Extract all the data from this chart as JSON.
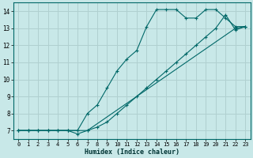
{
  "xlabel": "Humidex (Indice chaleur)",
  "bg_color": "#c8e8e8",
  "grid_color": "#b0d0d0",
  "line_color": "#006868",
  "xlim": [
    -0.5,
    23.5
  ],
  "ylim": [
    6.5,
    14.5
  ],
  "xticks": [
    0,
    1,
    2,
    3,
    4,
    5,
    6,
    7,
    8,
    9,
    10,
    11,
    12,
    13,
    14,
    15,
    16,
    17,
    18,
    19,
    20,
    21,
    22,
    23
  ],
  "yticks": [
    7,
    8,
    9,
    10,
    11,
    12,
    13,
    14
  ],
  "line1_x": [
    0,
    1,
    2,
    3,
    4,
    5,
    6,
    7,
    8,
    9,
    10,
    11,
    12,
    13,
    14,
    15,
    16,
    17,
    18,
    19,
    20,
    21,
    22,
    23
  ],
  "line1_y": [
    7,
    7,
    7,
    7,
    7,
    7,
    7,
    8,
    8.5,
    9.5,
    10.5,
    11.2,
    11.7,
    13.1,
    14.1,
    14.1,
    14.1,
    13.6,
    13.6,
    14.1,
    14.1,
    13.6,
    13.1,
    13.1
  ],
  "line2_x": [
    0,
    1,
    2,
    3,
    4,
    5,
    6,
    7,
    22,
    23
  ],
  "line2_y": [
    7,
    7,
    7,
    7,
    7,
    7,
    7,
    7,
    13.0,
    13.1
  ],
  "line3_x": [
    0,
    1,
    2,
    3,
    4,
    5,
    6,
    7,
    8,
    9,
    10,
    11,
    12,
    13,
    14,
    15,
    16,
    17,
    18,
    19,
    20,
    21,
    22,
    23
  ],
  "line3_y": [
    7,
    7,
    7,
    7,
    7,
    7,
    6.8,
    7.0,
    7.2,
    7.5,
    8.0,
    8.5,
    9.0,
    9.5,
    10.0,
    10.5,
    11.0,
    11.5,
    12.0,
    12.5,
    13.0,
    13.8,
    12.9,
    13.1
  ]
}
